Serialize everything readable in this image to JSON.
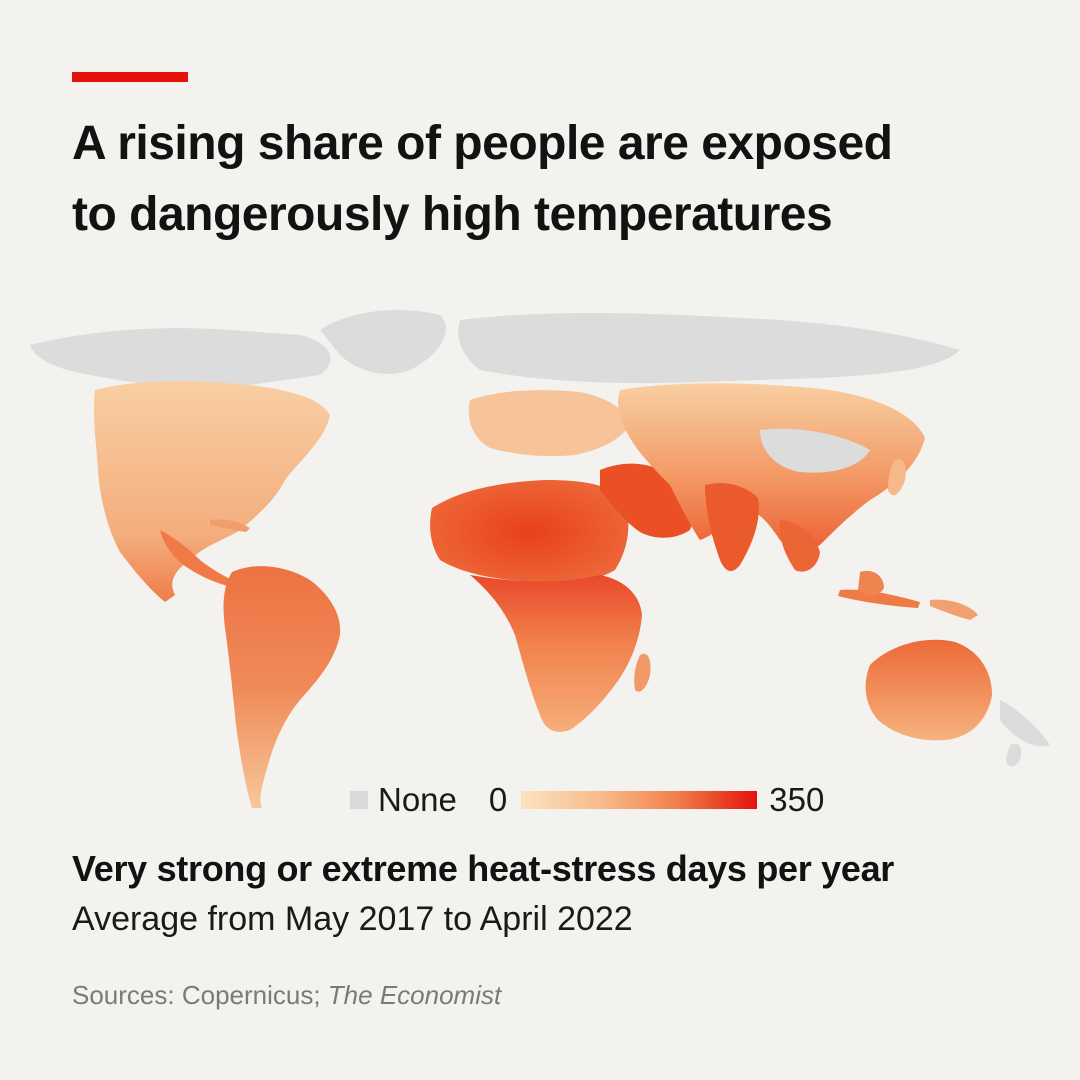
{
  "header": {
    "title_line1": "A rising share of people are exposed",
    "title_line2": "to dangerously high temperatures"
  },
  "legend": {
    "none_label": "None",
    "min_label": "0",
    "max_label": "350",
    "none_color": "#d9d9d9",
    "ramp_colors": [
      "#fce3bf",
      "#f8b98a",
      "#f0824e",
      "#e3120b"
    ]
  },
  "caption": {
    "subtitle": "Very strong or extreme heat-stress days per year",
    "subtitle2": "Average from May 2017 to April 2022"
  },
  "source": {
    "prefix": "Sources: Copernicus; ",
    "publication": "The Economist"
  },
  "colors": {
    "accent": "#e3120b",
    "background": "#f4f2ee",
    "land_none": "#dcdcdc"
  }
}
